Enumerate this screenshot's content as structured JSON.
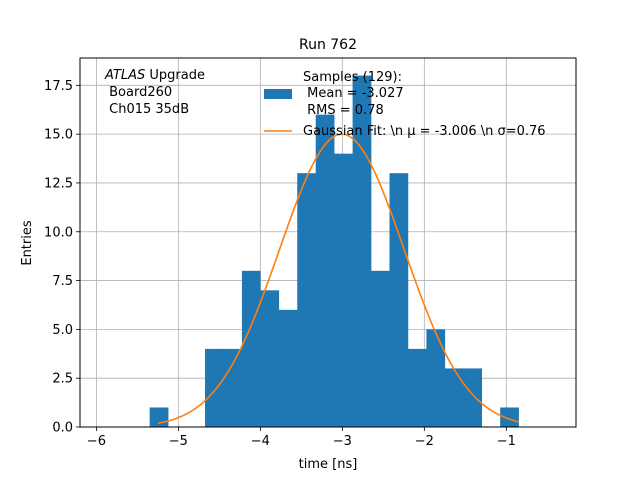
{
  "chart_data": {
    "type": "bar",
    "title": "Run 762",
    "xlabel": "time [ns]",
    "ylabel": "Entries",
    "xlim": [
      -6.2,
      -0.15
    ],
    "ylim": [
      0,
      18.9
    ],
    "xticks": [
      -6,
      -5,
      -4,
      -3,
      -2,
      -1
    ],
    "xtick_labels": [
      "−6",
      "−5",
      "−4",
      "−3",
      "−2",
      "−1"
    ],
    "yticks": [
      0,
      2.5,
      5,
      7.5,
      10,
      12.5,
      15,
      17.5
    ],
    "ytick_labels": [
      "0.0",
      "2.5",
      "5.0",
      "7.5",
      "10.0",
      "12.5",
      "15.0",
      "17.5"
    ],
    "grid": true,
    "bin_edges": [
      -5.35,
      -5.125,
      -4.9,
      -4.675,
      -4.45,
      -4.225,
      -4.0,
      -3.775,
      -3.55,
      -3.325,
      -3.1,
      -2.875,
      -2.65,
      -2.425,
      -2.2,
      -1.975,
      -1.75,
      -1.525,
      -1.3,
      -1.075,
      -0.85
    ],
    "series": [
      {
        "name": "Samples (129):\n Mean = -3.027\n RMS = 0.78",
        "type": "histogram",
        "color": "#1f77b4",
        "values": [
          1,
          0,
          0,
          4,
          4,
          8,
          7,
          6,
          13,
          16,
          14,
          18,
          8,
          13,
          4,
          5,
          3,
          3,
          0,
          1
        ]
      },
      {
        "name": "Gaussian Fit: \\n $\\mu$ = -3.006 \\n $\\sigma$=0.76",
        "type": "line",
        "color": "#ff7f0e",
        "mu": -3.006,
        "sigma": 0.76,
        "amplitude": 15.0,
        "x_range": [
          -5.25,
          -0.85
        ]
      }
    ],
    "legend": {
      "location": "top-right",
      "entries": [
        {
          "lines": [
            "Samples (129):",
            " Mean = -3.027",
            " RMS = 0.78"
          ],
          "color": "#1f77b4",
          "kind": "patch"
        },
        {
          "lines": [
            "Gaussian Fit: \\n μ = -3.006 \\n σ=0.76"
          ],
          "color": "#ff7f0e",
          "kind": "line"
        }
      ]
    },
    "annotation": {
      "lines": [
        "ATLAS Upgrade",
        " Board260",
        " Ch015 35dB"
      ],
      "italic_word": "ATLAS",
      "rest_of_first_line": " Upgrade"
    }
  }
}
